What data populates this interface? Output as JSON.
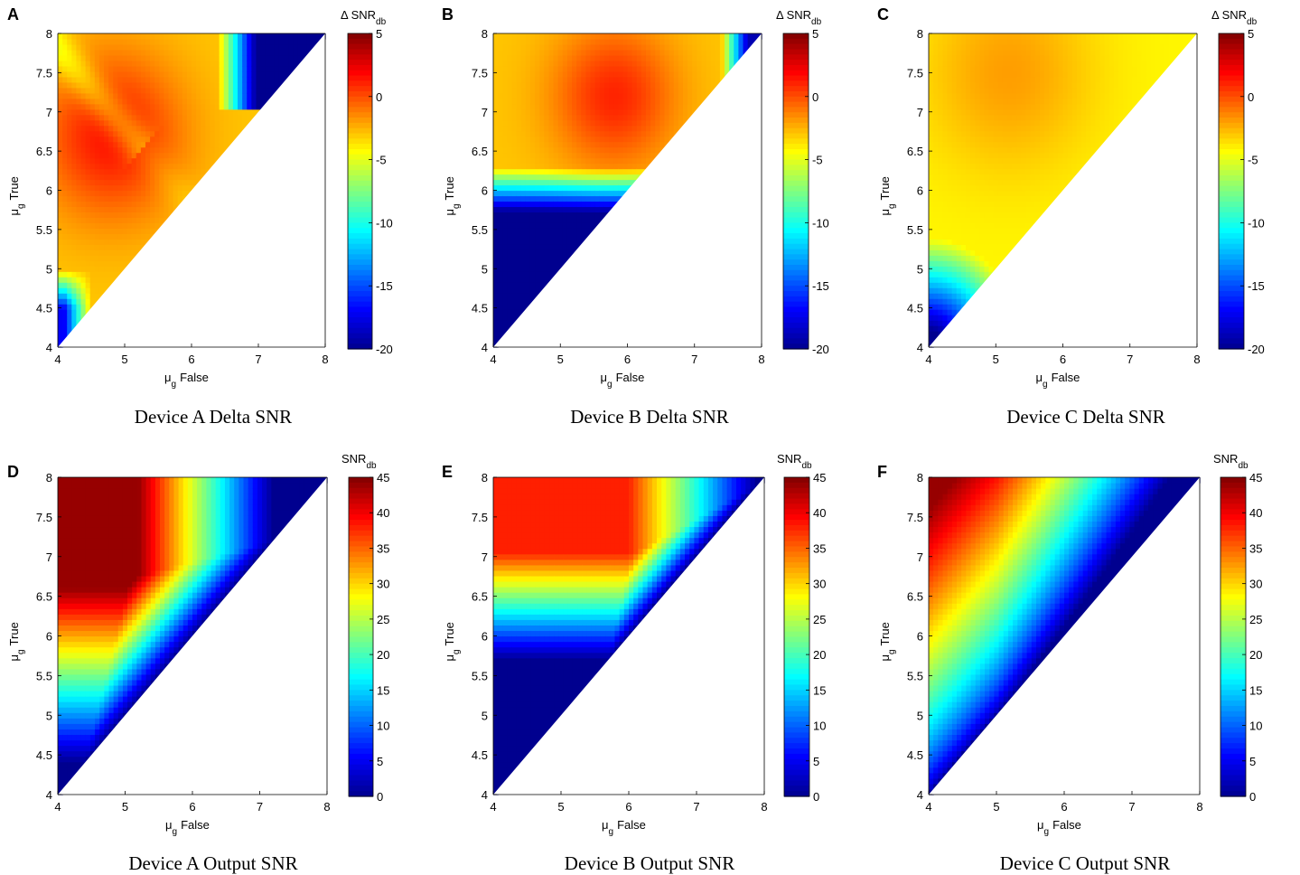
{
  "chart_data": [
    {
      "panel": "A",
      "type": "heatmap",
      "title": "Device A Delta SNR",
      "xlabel": {
        "symbol": "μ",
        "sub": "g",
        "text": "False"
      },
      "ylabel": {
        "symbol": "μ",
        "sub": "g",
        "text": "True"
      },
      "x_ticks": [
        "4",
        "5",
        "6",
        "7",
        "8"
      ],
      "y_ticks": [
        "4",
        "4.5",
        "5",
        "5.5",
        "6",
        "6.5",
        "7",
        "7.5",
        "8"
      ],
      "xlim": [
        4,
        8
      ],
      "ylim": [
        4,
        8
      ],
      "region": "μg True ≥ μg False",
      "colorbar": {
        "label": "Δ SNR",
        "sub": "db",
        "range": [
          -20,
          5
        ],
        "ticks": [
          "5",
          "0",
          "-5",
          "-10",
          "-15",
          "-20"
        ]
      },
      "hotspots": [
        {
          "x": 4.8,
          "y": 6.7,
          "value": 1.5
        }
      ],
      "field_notes": "low (-20) band along diagonal near x 7-8; minimum (-16) near x 4, y 4.3"
    },
    {
      "panel": "B",
      "type": "heatmap",
      "title": "Device B Delta SNR",
      "xlabel": {
        "symbol": "μ",
        "sub": "g",
        "text": "False"
      },
      "ylabel": {
        "symbol": "μ",
        "sub": "g",
        "text": "True"
      },
      "x_ticks": [
        "4",
        "5",
        "6",
        "7",
        "8"
      ],
      "y_ticks": [
        "4",
        "4.5",
        "5",
        "5.5",
        "6",
        "6.5",
        "7",
        "7.5",
        "8"
      ],
      "xlim": [
        4,
        8
      ],
      "ylim": [
        4,
        8
      ],
      "region": "μg True ≥ μg False",
      "colorbar": {
        "label": "Δ SNR",
        "sub": "db",
        "range": [
          -20,
          5
        ],
        "ticks": [
          "5",
          "0",
          "-5",
          "-10",
          "-15",
          "-20"
        ]
      },
      "hotspots": [
        {
          "x": 5.8,
          "y": 7.2,
          "value": 1
        }
      ],
      "field_notes": "-20 below y≈5.8; low near x 7.7-8, y 8"
    },
    {
      "panel": "C",
      "type": "heatmap",
      "title": "Device C Delta SNR",
      "xlabel": {
        "symbol": "μ",
        "sub": "g",
        "text": "False"
      },
      "ylabel": {
        "symbol": "μ",
        "sub": "g",
        "text": "True"
      },
      "x_ticks": [
        "4",
        "5",
        "6",
        "7",
        "8"
      ],
      "y_ticks": [
        "4",
        "4.5",
        "5",
        "5.5",
        "6",
        "6.5",
        "7",
        "7.5",
        "8"
      ],
      "xlim": [
        4,
        8
      ],
      "ylim": [
        4,
        8
      ],
      "region": "μg True ≥ μg False",
      "colorbar": {
        "label": "Δ SNR",
        "sub": "db",
        "range": [
          -20,
          5
        ],
        "ticks": [
          "5",
          "0",
          "-5",
          "-10",
          "-15",
          "-20"
        ]
      },
      "hotspots": [
        {
          "x": 5.2,
          "y": 7.5,
          "value": -2
        }
      ],
      "field_notes": "mostly -3 to -5; -20 at x 4, y 4"
    },
    {
      "panel": "D",
      "type": "heatmap",
      "title": "Device A Output SNR",
      "xlabel": {
        "symbol": "μ",
        "sub": "g",
        "text": "False"
      },
      "ylabel": {
        "symbol": "μ",
        "sub": "g",
        "text": "True"
      },
      "x_ticks": [
        "4",
        "5",
        "6",
        "7",
        "8"
      ],
      "y_ticks": [
        "4",
        "4.5",
        "5",
        "5.5",
        "6",
        "6.5",
        "7",
        "7.5",
        "8"
      ],
      "xlim": [
        4,
        8
      ],
      "ylim": [
        4,
        8
      ],
      "region": "μg True ≥ μg False",
      "colorbar": {
        "label": "SNR",
        "sub": "db",
        "range": [
          0,
          45
        ],
        "ticks": [
          "45",
          "40",
          "35",
          "30",
          "25",
          "20",
          "15",
          "10",
          "5",
          "0"
        ]
      },
      "hotspots": [
        {
          "x": 4,
          "y": 8,
          "value": 44
        }
      ],
      "field_notes": "max 44 near x 4-4.8, y 7-8; 0 near x > 7 and along diagonal"
    },
    {
      "panel": "E",
      "type": "heatmap",
      "title": "Device B Output SNR",
      "xlabel": {
        "symbol": "μ",
        "sub": "g",
        "text": "False"
      },
      "ylabel": {
        "symbol": "μ",
        "sub": "g",
        "text": "True"
      },
      "x_ticks": [
        "4",
        "5",
        "6",
        "7",
        "8"
      ],
      "y_ticks": [
        "4",
        "4.5",
        "5",
        "5.5",
        "6",
        "6.5",
        "7",
        "7.5",
        "8"
      ],
      "xlim": [
        4,
        8
      ],
      "ylim": [
        4,
        8
      ],
      "region": "μg True ≥ μg False",
      "colorbar": {
        "label": "SNR",
        "sub": "db",
        "range": [
          0,
          45
        ],
        "ticks": [
          "45",
          "40",
          "35",
          "30",
          "25",
          "20",
          "15",
          "10",
          "5",
          "0"
        ]
      },
      "hotspots": [
        {
          "x": 4.5,
          "y": 7.5,
          "value": 38
        }
      ],
      "field_notes": "0 below y≈5.6; plateau 38 for y > 7, x < 5.8"
    },
    {
      "panel": "F",
      "type": "heatmap",
      "title": "Device C Output SNR",
      "xlabel": {
        "symbol": "μ",
        "sub": "g",
        "text": "False"
      },
      "ylabel": {
        "symbol": "μ",
        "sub": "g",
        "text": "True"
      },
      "x_ticks": [
        "4",
        "5",
        "6",
        "7",
        "8"
      ],
      "y_ticks": [
        "4",
        "4.5",
        "5",
        "5.5",
        "6",
        "6.5",
        "7",
        "7.5",
        "8"
      ],
      "xlim": [
        4,
        8
      ],
      "ylim": [
        4,
        8
      ],
      "region": "μg True ≥ μg False",
      "colorbar": {
        "label": "SNR",
        "sub": "db",
        "range": [
          0,
          45
        ],
        "ticks": [
          "45",
          "40",
          "35",
          "30",
          "25",
          "20",
          "15",
          "10",
          "5",
          "0"
        ]
      },
      "hotspots": [
        {
          "x": 4,
          "y": 8,
          "value": 44
        }
      ],
      "field_notes": "SNR grows with distance from the diagonal"
    }
  ]
}
